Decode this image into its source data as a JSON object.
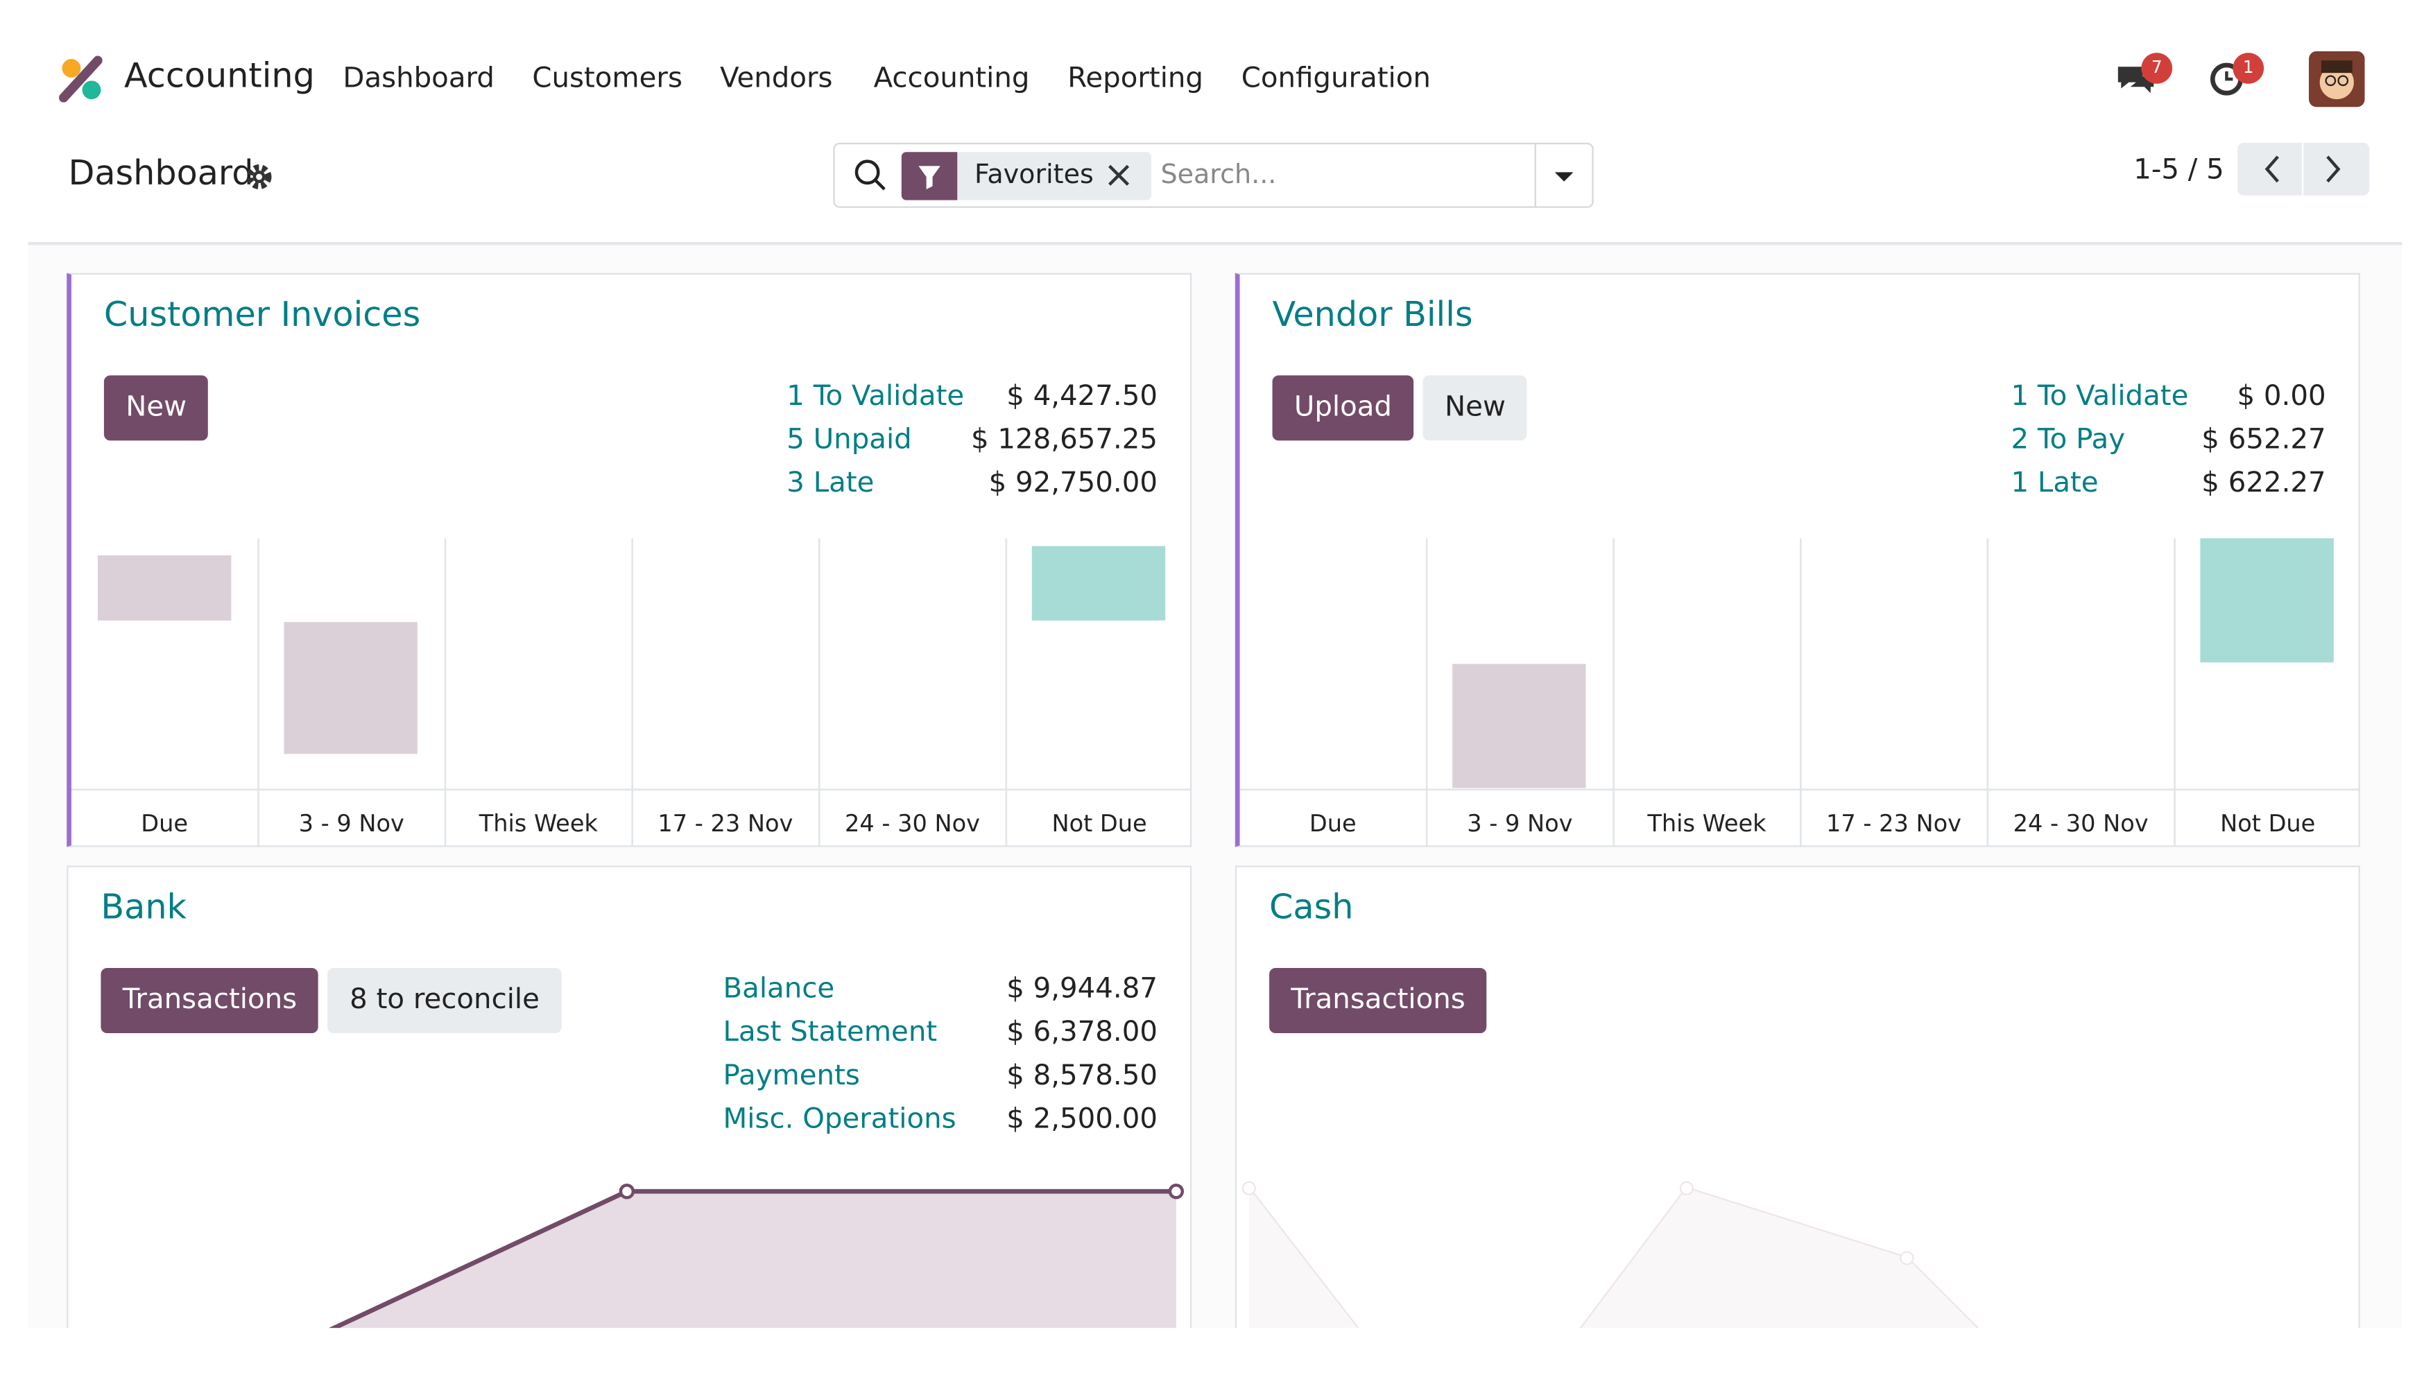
{
  "app": {
    "name": "Accounting",
    "menu": [
      "Dashboard",
      "Customers",
      "Vendors",
      "Accounting",
      "Reporting",
      "Configuration"
    ]
  },
  "notifications": {
    "messages": "7",
    "activities": "1"
  },
  "breadcrumb": "Dashboard",
  "search": {
    "facet": "Favorites",
    "placeholder": "Search..."
  },
  "pager": "1-5 / 5",
  "cards": [
    {
      "title": "Customer Invoices",
      "buttons": [
        "New"
      ],
      "stats": [
        {
          "label": "1 To Validate",
          "amount": "$ 4,427.50"
        },
        {
          "label": "5 Unpaid",
          "amount": "$ 128,657.25"
        },
        {
          "label": "3 Late",
          "amount": "$ 92,750.00"
        }
      ],
      "columns": [
        "Due",
        "3 - 9 Nov",
        "This Week",
        "17 - 23 Nov",
        "24 - 30 Nov",
        "Not Due"
      ]
    },
    {
      "title": "Vendor Bills",
      "buttons": [
        "Upload",
        "New"
      ],
      "stats": [
        {
          "label": "1 To Validate",
          "amount": "$ 0.00"
        },
        {
          "label": "2 To Pay",
          "amount": "$ 652.27"
        },
        {
          "label": "1 Late",
          "amount": "$ 622.27"
        }
      ],
      "columns": [
        "Due",
        "3 - 9 Nov",
        "This Week",
        "17 - 23 Nov",
        "24 - 30 Nov",
        "Not Due"
      ]
    },
    {
      "title": "Bank",
      "buttons": [
        "Transactions",
        "8 to reconcile"
      ],
      "stats": [
        {
          "label": "Balance",
          "amount": "$ 9,944.87"
        },
        {
          "label": "Last Statement",
          "amount": "$ 6,378.00"
        },
        {
          "label": "Payments",
          "amount": "$ 8,578.50"
        },
        {
          "label": "Misc. Operations",
          "amount": "$ 2,500.00"
        }
      ]
    },
    {
      "title": "Cash",
      "buttons": [
        "Transactions"
      ]
    }
  ]
}
